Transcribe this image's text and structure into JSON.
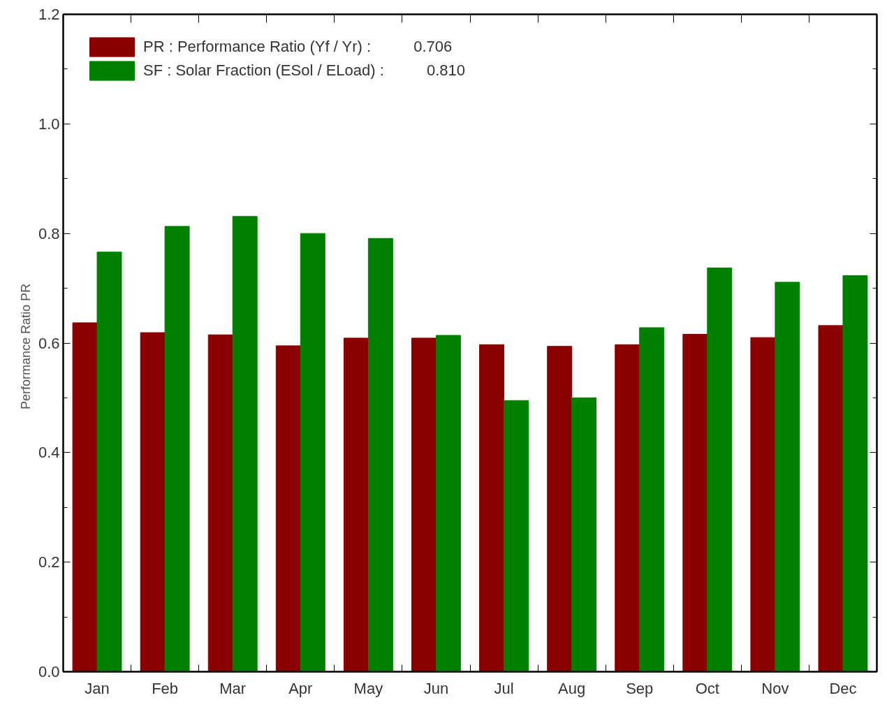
{
  "chart_data": {
    "type": "bar",
    "ylabel": "Performance  Ratio  PR",
    "categories": [
      "Jan",
      "Feb",
      "Mar",
      "Apr",
      "May",
      "Jun",
      "Jul",
      "Aug",
      "Sep",
      "Oct",
      "Nov",
      "Dec"
    ],
    "series": [
      {
        "name": "PR : Performance Ratio (Yf / Yr) :          0.706",
        "color": "#8b0000",
        "values": [
          0.637,
          0.619,
          0.615,
          0.595,
          0.609,
          0.609,
          0.597,
          0.594,
          0.597,
          0.616,
          0.61,
          0.632
        ]
      },
      {
        "name": "SF : Solar Fraction (ESol / ELoad) :          0.810",
        "color": "#008000",
        "values": [
          0.766,
          0.813,
          0.831,
          0.8,
          0.791,
          0.614,
          0.495,
          0.5,
          0.628,
          0.737,
          0.711,
          0.723
        ]
      }
    ],
    "ylim": [
      0,
      1.2
    ],
    "yticks": [
      {
        "value": 0,
        "label": "0.0"
      },
      {
        "value": 0.2,
        "label": "0.2"
      },
      {
        "value": 0.4,
        "label": "0.4"
      },
      {
        "value": 0.6,
        "label": "0.6"
      },
      {
        "value": 0.8,
        "label": "0.8"
      },
      {
        "value": 1.0,
        "label": "1.0"
      },
      {
        "value": 1.2,
        "label": "1.2"
      }
    ],
    "grid": false,
    "legend": "top left"
  }
}
